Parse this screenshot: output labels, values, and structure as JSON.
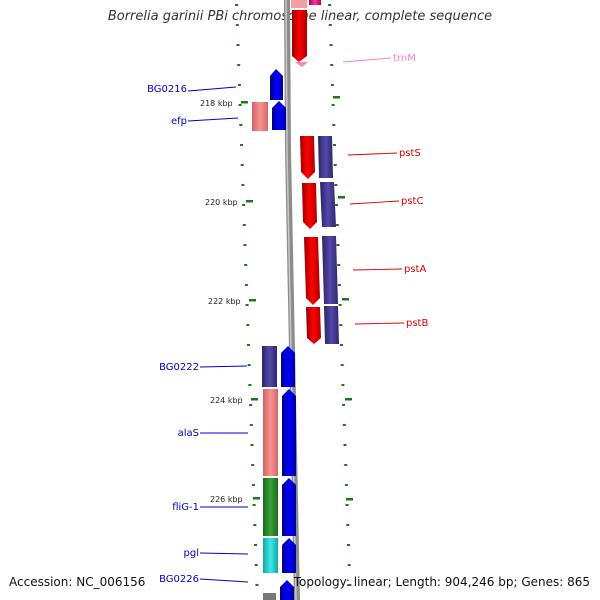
{
  "title": "Borrelia garinii PBi chromosome linear, complete sequence",
  "footer": {
    "accession": "Accession: NC_006156",
    "topology": "Topology: linear; Length: 904,246 bp; Genes: 865"
  },
  "scale": {
    "ticks": [
      {
        "label": "218 kbp"
      },
      {
        "label": "220 kbp"
      },
      {
        "label": "222 kbp"
      },
      {
        "label": "224 kbp"
      },
      {
        "label": "226 kbp"
      }
    ]
  },
  "genes_left": [
    {
      "name": "BG0216",
      "color": "#0000cc"
    },
    {
      "name": "efp",
      "color": "#0000cc"
    },
    {
      "name": "BG0222",
      "color": "#0000cc"
    },
    {
      "name": "alaS",
      "color": "#0000cc"
    },
    {
      "name": "fliG-1",
      "color": "#0000cc"
    },
    {
      "name": "pgl",
      "color": "#0000cc"
    },
    {
      "name": "BG0226",
      "color": "#0000cc"
    }
  ],
  "genes_right": [
    {
      "name": "trnM",
      "color": "#ff80c0"
    },
    {
      "name": "pstS",
      "color": "#dd0000"
    },
    {
      "name": "pstC",
      "color": "#dd0000"
    },
    {
      "name": "pstA",
      "color": "#dd0000"
    },
    {
      "name": "pstB",
      "color": "#dd0000"
    }
  ],
  "colors": {
    "backbone": "#8c8c8c",
    "forward_cds": "#0000ff",
    "reverse_cds": "#ff0000",
    "cog_purple": "#4a3f8f",
    "cog_pink": "#f08080",
    "cog_green": "#2e8b2e",
    "cog_cyan": "#20d0d0",
    "trna": "#ff66b3",
    "tick_green": "#1a7a1a"
  }
}
